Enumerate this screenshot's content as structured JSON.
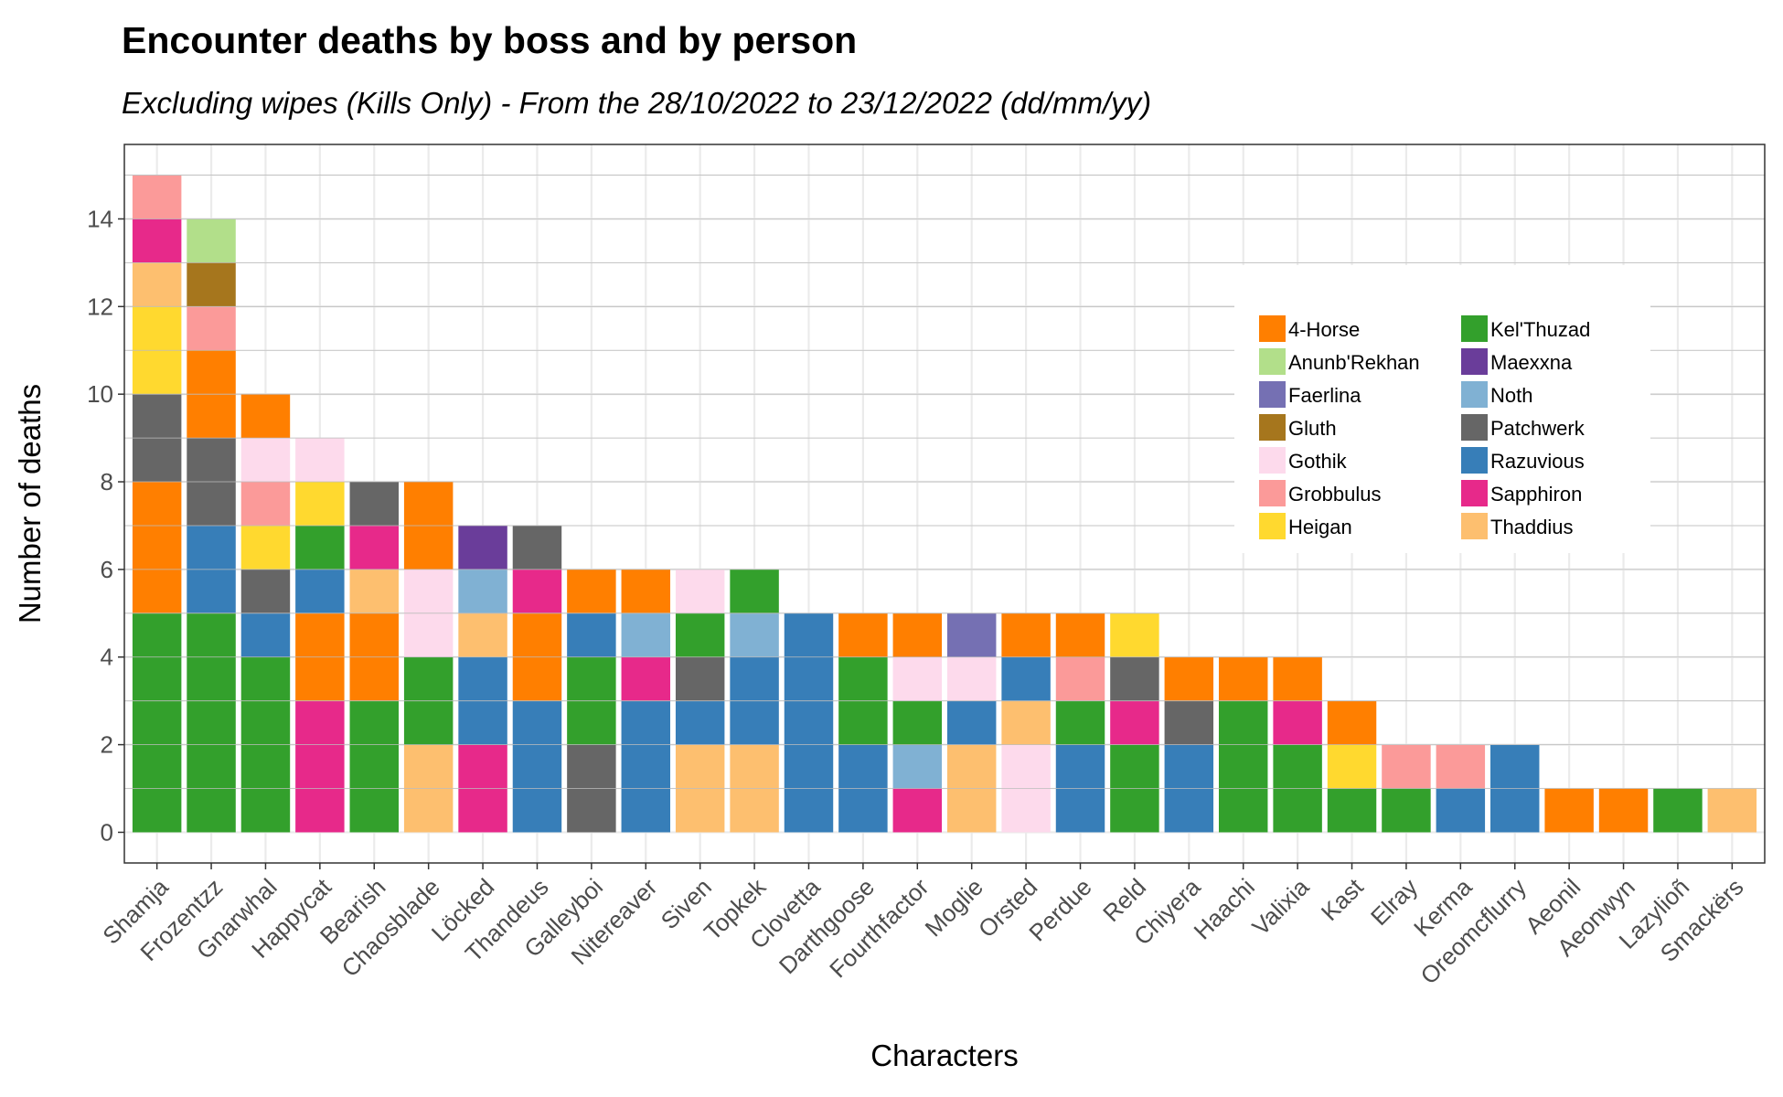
{
  "chart_data": {
    "type": "bar",
    "stacked": true,
    "title": "Encounter deaths by boss and by person",
    "subtitle": "Excluding wipes (Kills Only) - From the 28/10/2022 to 23/12/2022 (dd/mm/yy)",
    "xlabel": "Characters",
    "ylabel": "Number of deaths",
    "ylim": [
      -0.7,
      15.7
    ],
    "yticks": [
      0,
      2,
      4,
      6,
      8,
      10,
      12,
      14
    ],
    "grid": true,
    "legend_position": "top-right",
    "categories": [
      "Shamja",
      "Frozentzz",
      "Gnarwhal",
      "Happycat",
      "Bearish",
      "Chaosblade",
      "Löcked",
      "Thandeus",
      "Galleyboi",
      "Nitereaver",
      "Siven",
      "Topkek",
      "Clovetta",
      "Darthgoose",
      "Fourthfactor",
      "Moglie",
      "Orsted",
      "Perdue",
      "Reld",
      "Chiyera",
      "Haachi",
      "Valixia",
      "Kast",
      "Elray",
      "Kerma",
      "Oreomcflurry",
      "Aeonil",
      "Aeonwyn",
      "Lazylioñ",
      "Smackërs"
    ],
    "legend": [
      "4-Horse",
      "Anunb'Rekhan",
      "Faerlina",
      "Gluth",
      "Gothik",
      "Grobbulus",
      "Heigan",
      "Kel'Thuzad",
      "Maexxna",
      "Noth",
      "Patchwerk",
      "Razuvious",
      "Sapphiron",
      "Thaddius"
    ],
    "colors": {
      "4-Horse": "#ff7f00",
      "Anunb'Rekhan": "#b2df8a",
      "Faerlina": "#7570b3",
      "Gluth": "#a6761d",
      "Gothik": "#fddaec",
      "Grobbulus": "#fb9a99",
      "Heigan": "#ffd92f",
      "Kel'Thuzad": "#33a02c",
      "Maexxna": "#6a3d9a",
      "Noth": "#80b1d3",
      "Patchwerk": "#666666",
      "Razuvious": "#377eb8",
      "Sapphiron": "#e7298a",
      "Thaddius": "#fdbf6f"
    },
    "stacks": [
      [
        [
          "Kel'Thuzad",
          5
        ],
        [
          "4-Horse",
          3
        ],
        [
          "Patchwerk",
          2
        ],
        [
          "Heigan",
          2
        ],
        [
          "Thaddius",
          1
        ],
        [
          "Sapphiron",
          1
        ],
        [
          "Grobbulus",
          1
        ]
      ],
      [
        [
          "Kel'Thuzad",
          5
        ],
        [
          "Razuvious",
          2
        ],
        [
          "Patchwerk",
          2
        ],
        [
          "4-Horse",
          2
        ],
        [
          "Grobbulus",
          1
        ],
        [
          "Gluth",
          1
        ],
        [
          "Anunb'Rekhan",
          1
        ]
      ],
      [
        [
          "Kel'Thuzad",
          4
        ],
        [
          "Razuvious",
          1
        ],
        [
          "Patchwerk",
          1
        ],
        [
          "Heigan",
          1
        ],
        [
          "Grobbulus",
          1
        ],
        [
          "Gothik",
          1
        ],
        [
          "4-Horse",
          1
        ]
      ],
      [
        [
          "Sapphiron",
          3
        ],
        [
          "4-Horse",
          2
        ],
        [
          "Razuvious",
          1
        ],
        [
          "Kel'Thuzad",
          1
        ],
        [
          "Heigan",
          1
        ],
        [
          "Gothik",
          1
        ]
      ],
      [
        [
          "Kel'Thuzad",
          3
        ],
        [
          "4-Horse",
          2
        ],
        [
          "Thaddius",
          1
        ],
        [
          "Sapphiron",
          1
        ],
        [
          "Patchwerk",
          1
        ]
      ],
      [
        [
          "Thaddius",
          2
        ],
        [
          "Kel'Thuzad",
          2
        ],
        [
          "Gothik",
          2
        ],
        [
          "4-Horse",
          2
        ]
      ],
      [
        [
          "Sapphiron",
          2
        ],
        [
          "Razuvious",
          2
        ],
        [
          "Thaddius",
          1
        ],
        [
          "Noth",
          1
        ],
        [
          "Maexxna",
          1
        ]
      ],
      [
        [
          "Razuvious",
          3
        ],
        [
          "4-Horse",
          2
        ],
        [
          "Sapphiron",
          1
        ],
        [
          "Patchwerk",
          1
        ]
      ],
      [
        [
          "Patchwerk",
          2
        ],
        [
          "Kel'Thuzad",
          2
        ],
        [
          "Razuvious",
          1
        ],
        [
          "4-Horse",
          1
        ]
      ],
      [
        [
          "Razuvious",
          3
        ],
        [
          "Sapphiron",
          1
        ],
        [
          "Noth",
          1
        ],
        [
          "4-Horse",
          1
        ]
      ],
      [
        [
          "Thaddius",
          2
        ],
        [
          "Razuvious",
          1
        ],
        [
          "Patchwerk",
          1
        ],
        [
          "Kel'Thuzad",
          1
        ],
        [
          "Gothik",
          1
        ]
      ],
      [
        [
          "Thaddius",
          2
        ],
        [
          "Razuvious",
          2
        ],
        [
          "Noth",
          1
        ],
        [
          "Kel'Thuzad",
          1
        ]
      ],
      [
        [
          "Razuvious",
          5
        ]
      ],
      [
        [
          "Razuvious",
          2
        ],
        [
          "Kel'Thuzad",
          2
        ],
        [
          "4-Horse",
          1
        ]
      ],
      [
        [
          "Sapphiron",
          1
        ],
        [
          "Noth",
          1
        ],
        [
          "Kel'Thuzad",
          1
        ],
        [
          "Gothik",
          1
        ],
        [
          "4-Horse",
          1
        ]
      ],
      [
        [
          "Thaddius",
          2
        ],
        [
          "Razuvious",
          1
        ],
        [
          "Gothik",
          1
        ],
        [
          "Faerlina",
          1
        ]
      ],
      [
        [
          "Gothik",
          2
        ],
        [
          "Thaddius",
          1
        ],
        [
          "Razuvious",
          1
        ],
        [
          "4-Horse",
          1
        ]
      ],
      [
        [
          "Razuvious",
          2
        ],
        [
          "Kel'Thuzad",
          1
        ],
        [
          "Grobbulus",
          1
        ],
        [
          "4-Horse",
          1
        ]
      ],
      [
        [
          "Kel'Thuzad",
          2
        ],
        [
          "Sapphiron",
          1
        ],
        [
          "Patchwerk",
          1
        ],
        [
          "Heigan",
          1
        ]
      ],
      [
        [
          "Razuvious",
          2
        ],
        [
          "Patchwerk",
          1
        ],
        [
          "4-Horse",
          1
        ]
      ],
      [
        [
          "Kel'Thuzad",
          3
        ],
        [
          "4-Horse",
          1
        ]
      ],
      [
        [
          "Kel'Thuzad",
          2
        ],
        [
          "Sapphiron",
          1
        ],
        [
          "4-Horse",
          1
        ]
      ],
      [
        [
          "Kel'Thuzad",
          1
        ],
        [
          "Heigan",
          1
        ],
        [
          "4-Horse",
          1
        ]
      ],
      [
        [
          "Kel'Thuzad",
          1
        ],
        [
          "Grobbulus",
          1
        ]
      ],
      [
        [
          "Razuvious",
          1
        ],
        [
          "Grobbulus",
          1
        ]
      ],
      [
        [
          "Razuvious",
          2
        ]
      ],
      [
        [
          "4-Horse",
          1
        ]
      ],
      [
        [
          "4-Horse",
          1
        ]
      ],
      [
        [
          "Kel'Thuzad",
          1
        ]
      ],
      [
        [
          "Thaddius",
          1
        ]
      ]
    ]
  }
}
